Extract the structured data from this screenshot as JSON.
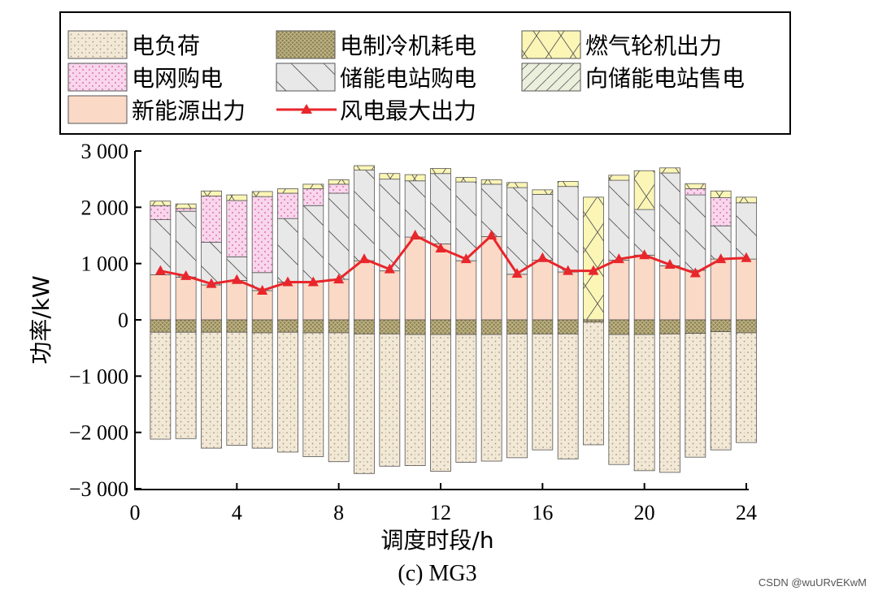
{
  "chart_data": {
    "type": "bar",
    "stacked": true,
    "caption": "(c) MG3",
    "xlabel": "调度时段/h",
    "ylabel": "功率/kW",
    "xlim": [
      0,
      24
    ],
    "ylim": [
      -3000,
      3000
    ],
    "xticks": [
      0,
      4,
      8,
      12,
      16,
      20,
      24
    ],
    "yticks": [
      3000,
      2000,
      1000,
      0,
      -1000,
      -2000,
      -3000
    ],
    "ytick_labels": [
      "3 000",
      "2 000",
      "1 000",
      "0",
      "−1 000",
      "−2 000",
      "−3 000"
    ],
    "legend_position": "top",
    "x": [
      1,
      2,
      3,
      4,
      5,
      6,
      7,
      8,
      9,
      10,
      11,
      12,
      13,
      14,
      15,
      16,
      17,
      18,
      19,
      20,
      21,
      22,
      23,
      24
    ],
    "series": [
      {
        "name": "电负荷",
        "key": "load",
        "pattern": "dots",
        "values": [
          -1900,
          -1890,
          -2060,
          -2010,
          -2050,
          -2130,
          -2200,
          -2290,
          -2480,
          -2350,
          -2330,
          -2430,
          -2270,
          -2250,
          -2200,
          -2060,
          -2220,
          -2180,
          -2310,
          -2420,
          -2460,
          -2200,
          -2100,
          -1950
        ]
      },
      {
        "name": "电制冷机耗电",
        "key": "chiller",
        "pattern": "dense",
        "values": [
          -220,
          -220,
          -220,
          -220,
          -230,
          -220,
          -230,
          -230,
          -250,
          -250,
          -260,
          -260,
          -260,
          -260,
          -250,
          -250,
          -250,
          -40,
          -260,
          -260,
          -250,
          -240,
          -210,
          -230
        ]
      },
      {
        "name": "新能源出力",
        "key": "renewable",
        "pattern": "solid",
        "values": [
          800,
          760,
          620,
          700,
          520,
          670,
          670,
          720,
          1050,
          870,
          1470,
          1350,
          1050,
          1480,
          810,
          1060,
          850,
          0,
          1060,
          1150,
          960,
          880,
          1080,
          1080
        ]
      },
      {
        "name": "储能电站购电",
        "key": "storage_buy",
        "pattern": "backslash",
        "values": [
          980,
          1170,
          760,
          420,
          320,
          1130,
          1360,
          1530,
          1610,
          1630,
          1000,
          1250,
          1400,
          930,
          1540,
          1170,
          1520,
          0,
          1420,
          810,
          1650,
          1340,
          590,
          1000
        ]
      },
      {
        "name": "电网购电",
        "key": "grid",
        "pattern": "pinkdots",
        "values": [
          250,
          50,
          820,
          1000,
          1350,
          450,
          300,
          160,
          0,
          0,
          0,
          0,
          0,
          0,
          0,
          0,
          0,
          0,
          0,
          0,
          0,
          110,
          500,
          0
        ]
      },
      {
        "name": "燃气轮机出力",
        "key": "gas",
        "pattern": "cross",
        "values": [
          80,
          80,
          90,
          100,
          90,
          80,
          80,
          80,
          80,
          100,
          110,
          90,
          80,
          80,
          90,
          80,
          90,
          2180,
          90,
          690,
          90,
          90,
          120,
          100
        ]
      },
      {
        "name": "向储能电站售电",
        "key": "storage_sell",
        "pattern": "slash",
        "values": [
          0,
          0,
          0,
          0,
          0,
          0,
          0,
          0,
          0,
          0,
          0,
          0,
          0,
          0,
          0,
          0,
          0,
          0,
          0,
          0,
          0,
          0,
          0,
          0
        ]
      },
      {
        "name": "风电最大出力",
        "key": "wind",
        "type": "line",
        "color": "#e8262b",
        "values": [
          870,
          780,
          640,
          710,
          520,
          670,
          670,
          720,
          1080,
          900,
          1500,
          1270,
          1080,
          1500,
          820,
          1100,
          870,
          870,
          1080,
          1150,
          980,
          830,
          1080,
          1100
        ]
      }
    ],
    "watermark": "CSDN @wuURvEKwM"
  }
}
